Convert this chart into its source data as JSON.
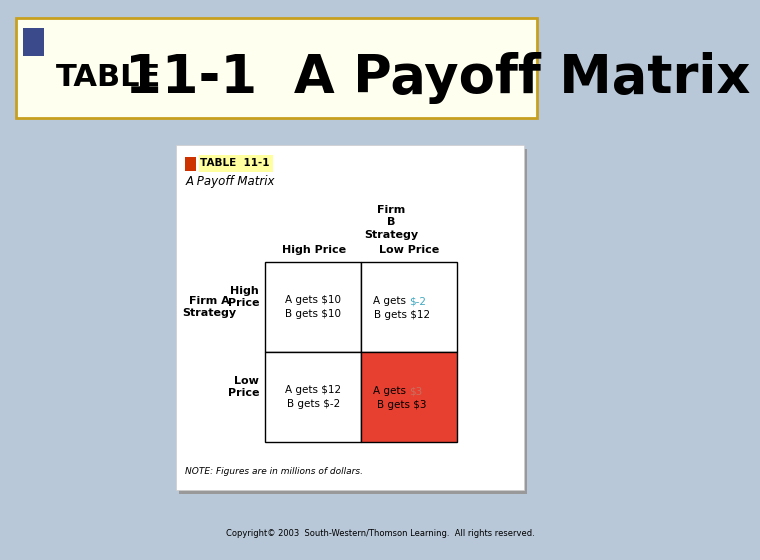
{
  "bg_color": "#b8c8d8",
  "header_bg": "#fffff0",
  "header_border": "#c8a020",
  "title_small_square_color": "#cc3300",
  "title_big_square_color": "#3a4a8a",
  "title_label": "TABLE",
  "title_number": "11-1",
  "title_subtitle": "A Payoff Matrix",
  "main_title": "TABLE 11-1 A Payoff Matrix",
  "card_bg": "#ffffff",
  "card_shadow": "#aaaaaa",
  "firm_b_label": "Firm\nB\nStrategy",
  "firm_a_label": "Firm A\nStrategy",
  "col_headers": [
    "High Price",
    "Low Price"
  ],
  "row_headers": [
    "High\nPrice",
    "Low\nPrice"
  ],
  "cell_00_text": "A gets $10\nB gets $10",
  "cell_01_text_part1": "A gets ",
  "cell_01_text_highlight": "$-2",
  "cell_01_text_part2": "\nB gets $12",
  "cell_10_text": "A gets $12\nB gets $-2",
  "cell_11_text_part1": "A gets ",
  "cell_11_text_highlight": "$3",
  "cell_11_text_part2": "\nB gets $3",
  "cell_11_bg": "#e84030",
  "cell_01_highlight_color": "#40a8c0",
  "cell_11_highlight_color": "#c87060",
  "note_text": "NOTE: Figures are in millions of dollars.",
  "copyright_text": "Copyright© 2003  South-Western/Thomson Learning.  All rights reserved."
}
